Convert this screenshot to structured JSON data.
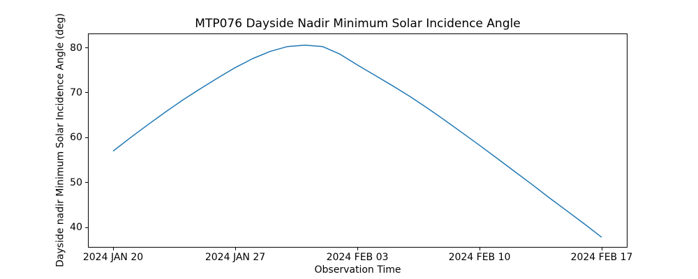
{
  "figure": {
    "title": "MTP076 Dayside Nadir Minimum Solar Incidence Angle",
    "xlabel": "Observation Time",
    "ylabel": "Dayside nadir Minimum Solar Incidence Angle (deg)"
  },
  "chart_data": {
    "type": "line",
    "title": "MTP076 Dayside Nadir Minimum Solar Incidence Angle",
    "xlabel": "Observation Time",
    "ylabel": "Dayside nadir Minimum Solar Incidence Angle (deg)",
    "grid": false,
    "legend_position": "none",
    "background_color": "#ffffff",
    "axis_color": "#000000",
    "line_width": 1.5,
    "xlim_day_offsets": [
      -1.44,
      29.48
    ],
    "ylim": [
      35.5,
      83.2
    ],
    "y_ticks": [
      40,
      50,
      60,
      70,
      80
    ],
    "x_ticks": [
      {
        "day_offset": 0,
        "label": "2024 JAN 20"
      },
      {
        "day_offset": 7,
        "label": "2024 JAN 27"
      },
      {
        "day_offset": 14,
        "label": "2024 FEB 03"
      },
      {
        "day_offset": 21,
        "label": "2024 FEB 10"
      },
      {
        "day_offset": 28,
        "label": "2024 FEB 17"
      }
    ],
    "series": [
      {
        "name": "dayside-nadir-minimum-solar-incidence-angle",
        "color": "#1f77b4",
        "x": [
          "2024 JAN 20",
          "2024 JAN 21",
          "2024 JAN 22",
          "2024 JAN 23",
          "2024 JAN 24",
          "2024 JAN 25",
          "2024 JAN 26",
          "2024 JAN 27",
          "2024 JAN 28",
          "2024 JAN 29",
          "2024 JAN 30",
          "2024 JAN 31",
          "2024 FEB 01",
          "2024 FEB 02",
          "2024 FEB 03",
          "2024 FEB 04",
          "2024 FEB 05",
          "2024 FEB 06",
          "2024 FEB 07",
          "2024 FEB 08",
          "2024 FEB 09",
          "2024 FEB 10",
          "2024 FEB 11",
          "2024 FEB 12",
          "2024 FEB 13",
          "2024 FEB 14",
          "2024 FEB 15",
          "2024 FEB 16",
          "2024 FEB 17"
        ],
        "x_day_offset": [
          0,
          1,
          2,
          3,
          4,
          5,
          6,
          7,
          8,
          9,
          10,
          11,
          12,
          13,
          14,
          15,
          16,
          17,
          18,
          19,
          20,
          21,
          22,
          23,
          24,
          25,
          26,
          27,
          28
        ],
        "values": [
          57.0,
          60.0,
          62.9,
          65.7,
          68.4,
          70.9,
          73.3,
          75.6,
          77.6,
          79.2,
          80.3,
          80.6,
          80.3,
          78.6,
          76.2,
          73.9,
          71.6,
          69.2,
          66.6,
          63.9,
          61.1,
          58.3,
          55.4,
          52.5,
          49.6,
          46.6,
          43.7,
          40.8,
          37.8
        ]
      }
    ]
  }
}
